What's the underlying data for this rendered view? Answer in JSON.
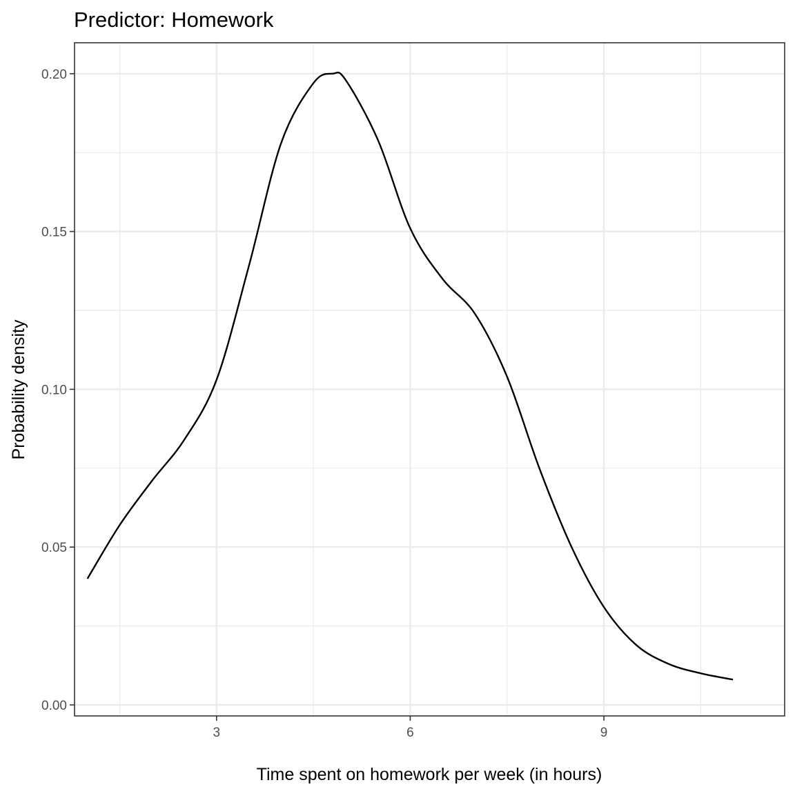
{
  "chart_data": {
    "type": "line",
    "title": "Predictor: Homework",
    "xlabel": "Time spent on homework per week (in hours)",
    "ylabel": "Probability density",
    "xlim": [
      0.8,
      11.8
    ],
    "ylim": [
      -0.0035,
      0.2098
    ],
    "x_ticks": [
      3,
      6,
      9
    ],
    "x_tick_labels": [
      "3",
      "6",
      "9"
    ],
    "x_minor_ticks": [
      1.5,
      4.5,
      7.5,
      10.5
    ],
    "y_ticks": [
      0.0,
      0.05,
      0.1,
      0.15,
      0.2
    ],
    "y_tick_labels": [
      "0.00",
      "0.05",
      "0.10",
      "0.15",
      "0.20"
    ],
    "y_minor_ticks": [
      0.025,
      0.075,
      0.125,
      0.175
    ],
    "grid": true,
    "line_color": "#000000",
    "series": [
      {
        "x": [
          1.0,
          1.5,
          2.0,
          2.5,
          3.0,
          3.5,
          4.0,
          4.5,
          4.8,
          5.0,
          5.5,
          6.0,
          6.5,
          7.0,
          7.5,
          8.0,
          8.5,
          9.0,
          9.5,
          10.0,
          10.5,
          11.0
        ],
        "y": [
          0.04,
          0.057,
          0.071,
          0.084,
          0.103,
          0.139,
          0.178,
          0.197,
          0.2,
          0.198,
          0.179,
          0.151,
          0.135,
          0.124,
          0.104,
          0.075,
          0.05,
          0.031,
          0.019,
          0.013,
          0.01,
          0.008
        ]
      }
    ]
  }
}
